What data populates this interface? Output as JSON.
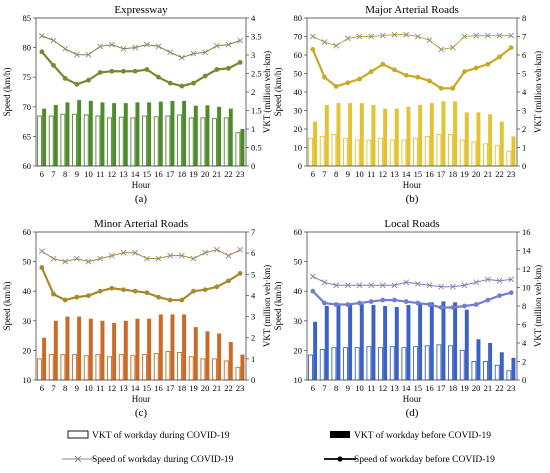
{
  "chart_data": [
    {
      "type": "bar",
      "panel_label": "(a)",
      "title": "Expressway",
      "xlabel": "Hour",
      "ylabel": "Speed (km/h)",
      "y2label": "VKT (million veh·km)",
      "ylim": [
        60,
        85
      ],
      "yticks": [
        "60",
        "65",
        "70",
        "75",
        "80",
        "85"
      ],
      "y2lim": [
        0,
        4
      ],
      "y2ticks": [
        "0",
        "0.5",
        "1",
        "1.5",
        "2",
        "2.5",
        "3",
        "3.5",
        "4"
      ],
      "categories": [
        "6",
        "7",
        "8",
        "9",
        "10",
        "11",
        "12",
        "13",
        "14",
        "15",
        "16",
        "17",
        "18",
        "19",
        "20",
        "21",
        "22",
        "23"
      ],
      "series": [
        {
          "name": "VKT of workday during COVID-19",
          "kind": "bar-outline",
          "axis": "right",
          "values": [
            1.35,
            1.35,
            1.4,
            1.4,
            1.38,
            1.35,
            1.3,
            1.32,
            1.3,
            1.35,
            1.33,
            1.35,
            1.38,
            1.3,
            1.3,
            1.28,
            1.3,
            0.9
          ]
        },
        {
          "name": "VKT of workday before COVID-19",
          "kind": "bar-filled",
          "axis": "right",
          "values": [
            1.55,
            1.65,
            1.72,
            1.78,
            1.76,
            1.72,
            1.7,
            1.7,
            1.72,
            1.72,
            1.74,
            1.76,
            1.76,
            1.63,
            1.64,
            1.6,
            1.55,
            1.0
          ]
        },
        {
          "name": "Speed of workday during COVID-19",
          "kind": "line-x",
          "axis": "left",
          "values": [
            82,
            81.2,
            79.8,
            78.8,
            78.8,
            80.2,
            80.5,
            79.8,
            80,
            80.5,
            80.2,
            79.2,
            78.3,
            79,
            79.2,
            80.3,
            80.5,
            81.2
          ]
        },
        {
          "name": "Speed of workday before COVID-19",
          "kind": "line-dot",
          "axis": "left",
          "values": [
            79.3,
            77,
            74.8,
            73.8,
            74.5,
            75.8,
            76,
            76,
            76,
            76.3,
            75,
            74,
            73.5,
            74,
            75.2,
            76.3,
            76.5,
            77.5
          ]
        }
      ],
      "color": "#4f8a2e",
      "line_color": "#78892f"
    },
    {
      "type": "bar",
      "panel_label": "(b)",
      "title": "Major Arterial Roads",
      "xlabel": "Hour",
      "ylabel": "Speed (km/h)",
      "y2label": "VKT (million veh·km)",
      "ylim": [
        0,
        80
      ],
      "yticks": [
        "0",
        "10",
        "20",
        "30",
        "40",
        "50",
        "60",
        "70",
        "80"
      ],
      "y2lim": [
        0,
        8
      ],
      "y2ticks": [
        "0",
        "1",
        "2",
        "3",
        "4",
        "5",
        "6",
        "7",
        "8"
      ],
      "categories": [
        "6",
        "7",
        "8",
        "9",
        "10",
        "11",
        "12",
        "13",
        "14",
        "15",
        "16",
        "17",
        "18",
        "19",
        "20",
        "21",
        "22",
        "23"
      ],
      "series": [
        {
          "name": "VKT of workday during COVID-19",
          "kind": "bar-outline",
          "axis": "right",
          "values": [
            1.5,
            1.6,
            1.7,
            1.5,
            1.4,
            1.4,
            1.5,
            1.4,
            1.4,
            1.5,
            1.6,
            1.7,
            1.7,
            1.4,
            1.3,
            1.2,
            1.1,
            0.8
          ]
        },
        {
          "name": "VKT of workday before COVID-19",
          "kind": "bar-filled",
          "axis": "right",
          "values": [
            2.4,
            3.3,
            3.4,
            3.4,
            3.4,
            3.3,
            3.1,
            3.1,
            3.2,
            3.3,
            3.4,
            3.5,
            3.5,
            2.9,
            2.9,
            2.8,
            2.4,
            1.6
          ]
        },
        {
          "name": "Speed of workday during COVID-19",
          "kind": "line-x",
          "axis": "left",
          "values": [
            70,
            67,
            65,
            69,
            70,
            70,
            70.5,
            71,
            71,
            70,
            68,
            63,
            64,
            70,
            70.5,
            70.5,
            70.5,
            70.5
          ]
        },
        {
          "name": "Speed of workday before COVID-19",
          "kind": "line-dot",
          "axis": "left",
          "values": [
            63,
            48,
            43,
            45,
            47,
            51,
            55,
            52,
            49,
            48,
            46,
            42,
            42,
            51,
            53,
            55,
            59,
            64
          ]
        }
      ],
      "color": "#e3c233",
      "line_color": "#c9a824"
    },
    {
      "type": "bar",
      "panel_label": "(c)",
      "title": "Minor Arterial Roads",
      "xlabel": "Hour",
      "ylabel": "Speed (km/h)",
      "y2label": "VKT (million veh·km)",
      "ylim": [
        10,
        60
      ],
      "yticks": [
        "10",
        "20",
        "30",
        "40",
        "50",
        "60"
      ],
      "y2lim": [
        0,
        7
      ],
      "y2ticks": [
        "0",
        "1",
        "2",
        "3",
        "4",
        "5",
        "6",
        "7"
      ],
      "categories": [
        "6",
        "7",
        "8",
        "9",
        "10",
        "11",
        "12",
        "13",
        "14",
        "15",
        "16",
        "17",
        "18",
        "19",
        "20",
        "21",
        "22",
        "23"
      ],
      "series": [
        {
          "name": "VKT of workday during COVID-19",
          "kind": "bar-outline",
          "axis": "right",
          "values": [
            1.0,
            1.2,
            1.2,
            1.2,
            1.15,
            1.2,
            1.1,
            1.2,
            1.15,
            1.2,
            1.25,
            1.35,
            1.3,
            1.1,
            1.0,
            1.0,
            0.9,
            0.6
          ]
        },
        {
          "name": "VKT of workday before COVID-19",
          "kind": "bar-filled",
          "axis": "right",
          "values": [
            2.0,
            2.8,
            3.0,
            3.0,
            2.9,
            2.8,
            2.7,
            2.8,
            2.9,
            2.9,
            3.1,
            3.1,
            3.1,
            2.5,
            2.3,
            2.2,
            1.8,
            1.2
          ]
        },
        {
          "name": "Speed of workday during COVID-19",
          "kind": "line-x",
          "axis": "left",
          "values": [
            53.5,
            51,
            50,
            51,
            50,
            51,
            52,
            53,
            53,
            51,
            51,
            52,
            52,
            51,
            53,
            54,
            52,
            54
          ]
        },
        {
          "name": "Speed of workday before COVID-19",
          "kind": "line-dot",
          "axis": "left",
          "values": [
            48,
            39,
            37,
            38,
            38.5,
            40,
            41,
            40.5,
            40,
            39.5,
            38,
            37,
            37,
            40,
            40.5,
            41.5,
            43.5,
            46
          ]
        }
      ],
      "color": "#c96a26",
      "line_color": "#a78a2a"
    },
    {
      "type": "bar",
      "panel_label": "(d)",
      "title": "Local Roads",
      "xlabel": "Hour",
      "ylabel": "Speed (km/h)",
      "y2label": "VKT (million veh·km)",
      "ylim": [
        10,
        60
      ],
      "yticks": [
        "10",
        "20",
        "30",
        "40",
        "50",
        "60"
      ],
      "y2lim": [
        0,
        16
      ],
      "y2ticks": [
        "0",
        "2",
        "4",
        "6",
        "8",
        "10",
        "12",
        "14",
        "16"
      ],
      "categories": [
        "6",
        "7",
        "8",
        "9",
        "10",
        "11",
        "12",
        "13",
        "14",
        "15",
        "16",
        "17",
        "18",
        "19",
        "20",
        "21",
        "22",
        "23"
      ],
      "series": [
        {
          "name": "VKT of workday during COVID-19",
          "kind": "bar-outline",
          "axis": "right",
          "values": [
            2.7,
            3.3,
            3.5,
            3.5,
            3.5,
            3.6,
            3.5,
            3.6,
            3.5,
            3.6,
            3.7,
            3.8,
            3.7,
            3.2,
            2.0,
            2.0,
            1.6,
            1.0
          ]
        },
        {
          "name": "VKT of workday before COVID-19",
          "kind": "bar-filled",
          "axis": "right",
          "values": [
            6.3,
            8.0,
            8.3,
            8.3,
            8.2,
            8.1,
            8.0,
            7.9,
            8.1,
            8.2,
            8.4,
            8.5,
            8.4,
            7.6,
            4.4,
            4.0,
            3.0,
            2.4
          ]
        },
        {
          "name": "Speed of workday during COVID-19",
          "kind": "line-x",
          "axis": "left",
          "values": [
            45,
            43,
            42,
            42,
            42,
            42,
            42,
            42,
            43,
            42.5,
            42,
            41.5,
            41.5,
            42,
            43,
            44,
            43.5,
            44
          ]
        },
        {
          "name": "Speed of workday before COVID-19",
          "kind": "line-dot",
          "axis": "left",
          "values": [
            40,
            36,
            35.5,
            35.5,
            36,
            36.5,
            37,
            37,
            36.5,
            36,
            35.5,
            34.5,
            34.5,
            35,
            35.5,
            37,
            38.5,
            39.5
          ]
        }
      ],
      "color": "#3c63c4",
      "line_color": "#6f7fd3"
    }
  ],
  "legend": [
    {
      "label": "VKT of workday during COVID-19",
      "symbol": "bar-outline"
    },
    {
      "label": "VKT of workday before COVID-19",
      "symbol": "bar-filled"
    },
    {
      "label": "Speed of workday during COVID-19",
      "symbol": "line-x"
    },
    {
      "label": "Speed of workday  before COVID-19",
      "symbol": "line-dot"
    }
  ]
}
